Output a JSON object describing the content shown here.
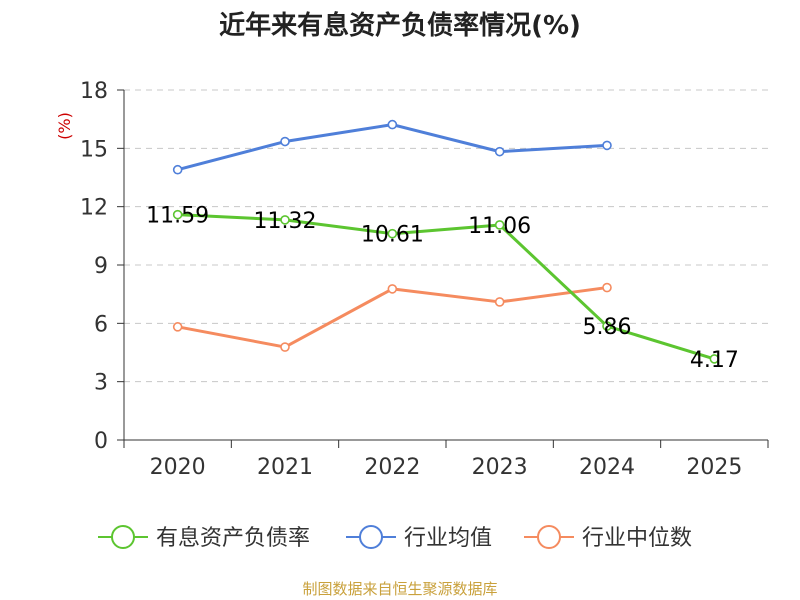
{
  "chart_data": {
    "type": "line",
    "title": "近年来有息资产负债率情况(%)",
    "ylabel": "(%)",
    "xlabel": "",
    "categories": [
      "2020",
      "2021",
      "2022",
      "2023",
      "2024",
      "2025"
    ],
    "y_ticks": [
      "0",
      "3",
      "6",
      "9",
      "12",
      "15",
      "18"
    ],
    "ylim": [
      0,
      18
    ],
    "grid": true,
    "legend_position": "bottom",
    "series": [
      {
        "name": "有息资产负债率",
        "color": "#5cc530",
        "values": [
          11.59,
          11.32,
          10.61,
          11.06,
          5.86,
          4.17
        ],
        "labels": [
          "11.59",
          "11.32",
          "10.61",
          "11.06",
          "5.86",
          "4.17"
        ]
      },
      {
        "name": "行业均值",
        "color": "#4f7fd9",
        "values": [
          13.9,
          15.35,
          16.22,
          14.83,
          15.15,
          null
        ]
      },
      {
        "name": "行业中位数",
        "color": "#f58b5f",
        "values": [
          5.82,
          4.78,
          7.77,
          7.1,
          7.84,
          null
        ]
      }
    ]
  },
  "ylabel_color": "#cc0000",
  "source": "制图数据来自恒生聚源数据库",
  "source_color": "#c9a13c"
}
